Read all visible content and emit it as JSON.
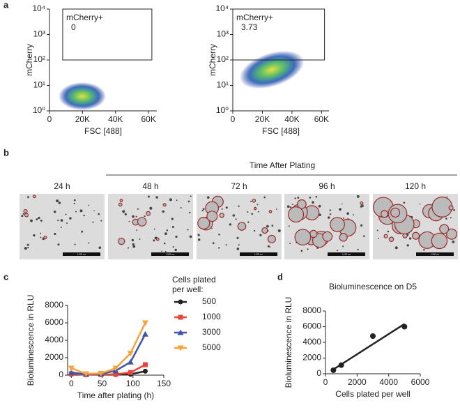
{
  "figure": {
    "panel_labels": [
      "a",
      "b",
      "c",
      "d"
    ]
  },
  "chart_data": [
    {
      "type": "flow",
      "xlabel": "FSC [488]",
      "ylabel": "mCherry",
      "xlim": [
        0,
        65000
      ],
      "ylim": [
        1,
        10000
      ],
      "log_y": true,
      "xticks": [
        0,
        {
          "value": 20000,
          "label": "20K"
        },
        {
          "value": 40000,
          "label": "40K"
        },
        {
          "value": 60000,
          "label": "60K"
        }
      ],
      "yticks": [
        {
          "value": 1,
          "label": "10⁰"
        },
        {
          "value": 10,
          "label": "10¹"
        },
        {
          "value": 100,
          "label": "10²"
        },
        {
          "value": 1000,
          "label": "10³"
        },
        {
          "value": 10000,
          "label": "10⁴"
        }
      ],
      "gate": {
        "label": "mCherry+",
        "value": 0,
        "x": [
          8000,
          62000
        ],
        "y": [
          100,
          10000
        ]
      }
    },
    {
      "type": "flow",
      "xlabel": "FSC [488]",
      "ylabel": "mCherry",
      "xlim": [
        0,
        65000
      ],
      "ylim": [
        1,
        10000
      ],
      "log_y": true,
      "xticks": [
        0,
        {
          "value": 20000,
          "label": "20K"
        },
        {
          "value": 40000,
          "label": "40K"
        },
        {
          "value": 60000,
          "label": "60K"
        }
      ],
      "yticks": [
        {
          "value": 1,
          "label": "10⁰"
        },
        {
          "value": 10,
          "label": "10¹"
        },
        {
          "value": 100,
          "label": "10²"
        },
        {
          "value": 1000,
          "label": "10³"
        },
        {
          "value": 10000,
          "label": "10⁴"
        }
      ],
      "gate": {
        "label": "mCherry+",
        "value": 3.73,
        "x": [
          0,
          62000
        ],
        "y": [
          100,
          10000
        ]
      }
    },
    {
      "type": "line",
      "xlabel": "Time after plating (h)",
      "ylabel": "Bioluminescence in RLU",
      "legend_title": [
        "Cells plated",
        "per well:"
      ],
      "x": [
        0,
        24,
        48,
        72,
        96,
        120
      ],
      "xlim": [
        -6,
        150
      ],
      "xticks": [
        0,
        50,
        100,
        150
      ],
      "ylim": [
        0,
        8000
      ],
      "yticks": [
        0,
        2000,
        4000,
        6000,
        8000
      ],
      "series": [
        {
          "name": "500",
          "color": "#222222",
          "marker": "circle",
          "values": [
            100,
            50,
            50,
            60,
            100,
            450
          ]
        },
        {
          "name": "1000",
          "color": "#e8463a",
          "marker": "square",
          "values": [
            150,
            60,
            80,
            100,
            300,
            1200
          ]
        },
        {
          "name": "3000",
          "color": "#3f55a8",
          "marker": "triangle",
          "values": [
            300,
            100,
            150,
            500,
            1500,
            4700
          ]
        },
        {
          "name": "5000",
          "color": "#f7a23a",
          "marker": "triangle-down",
          "values": [
            800,
            150,
            200,
            800,
            2500,
            6000
          ]
        }
      ]
    },
    {
      "type": "scatter",
      "title": "Bioluminescence on D5",
      "xlabel": "Cells plated per well",
      "ylabel": "Bioluminescence in RLU",
      "x": [
        500,
        1000,
        3000,
        5000
      ],
      "values": [
        450,
        1100,
        4800,
        6000
      ],
      "errors": [
        0,
        0,
        350,
        0
      ],
      "color": "#222222",
      "xlim": [
        0,
        6000
      ],
      "xticks": [
        0,
        2000,
        4000,
        6000
      ],
      "ylim": [
        0,
        8000
      ],
      "yticks": [
        0,
        2000,
        4000,
        6000,
        8000
      ],
      "fit": {
        "x": [
          500,
          5000
        ],
        "y": [
          550,
          6350
        ]
      }
    }
  ],
  "images": {
    "title": "Time After Plating",
    "labels": [
      "24 h",
      "48 h",
      "72 h",
      "96 h",
      "120 h"
    ],
    "scale_bar": "1,000 µm"
  }
}
